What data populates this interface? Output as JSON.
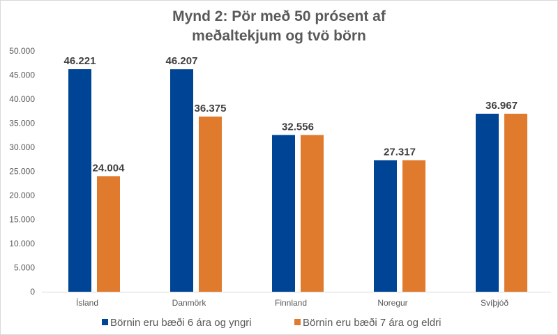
{
  "chart_data": {
    "type": "bar",
    "title_lines": [
      "Mynd 2: Pör með 50 prósent af",
      "meðaltekjum og tvö börn"
    ],
    "categories": [
      "Ísland",
      "Danmörk",
      "Finnland",
      "Noregur",
      "Svíþjóð"
    ],
    "series": [
      {
        "name": "Börnin eru bæði 6 ára og yngri",
        "color": "#004595",
        "values": [
          46221,
          46207,
          32556,
          27317,
          36967
        ]
      },
      {
        "name": "Börnin eru bæði 7 ára og eldri",
        "color": "#e07b2e",
        "values": [
          24004,
          36375,
          32556,
          27317,
          36967
        ]
      }
    ],
    "data_labels": [
      {
        "category": "Ísland",
        "series": 0,
        "text": "46.221"
      },
      {
        "category": "Ísland",
        "series": 1,
        "text": "24.004"
      },
      {
        "category": "Danmörk",
        "series": 0,
        "text": "46.207"
      },
      {
        "category": "Danmörk",
        "series": 1,
        "text": "36.375"
      },
      {
        "category": "Finnland",
        "series": "both",
        "text": "32.556"
      },
      {
        "category": "Noregur",
        "series": "both",
        "text": "27.317"
      },
      {
        "category": "Svíþjóð",
        "series": "both",
        "text": "36.967"
      }
    ],
    "yticks": [
      "0",
      "5.000",
      "10.000",
      "15.000",
      "20.000",
      "25.000",
      "30.000",
      "35.000",
      "40.000",
      "45.000",
      "50.000"
    ],
    "ylim": [
      0,
      50000
    ],
    "grid": false,
    "legend_position": "bottom"
  }
}
